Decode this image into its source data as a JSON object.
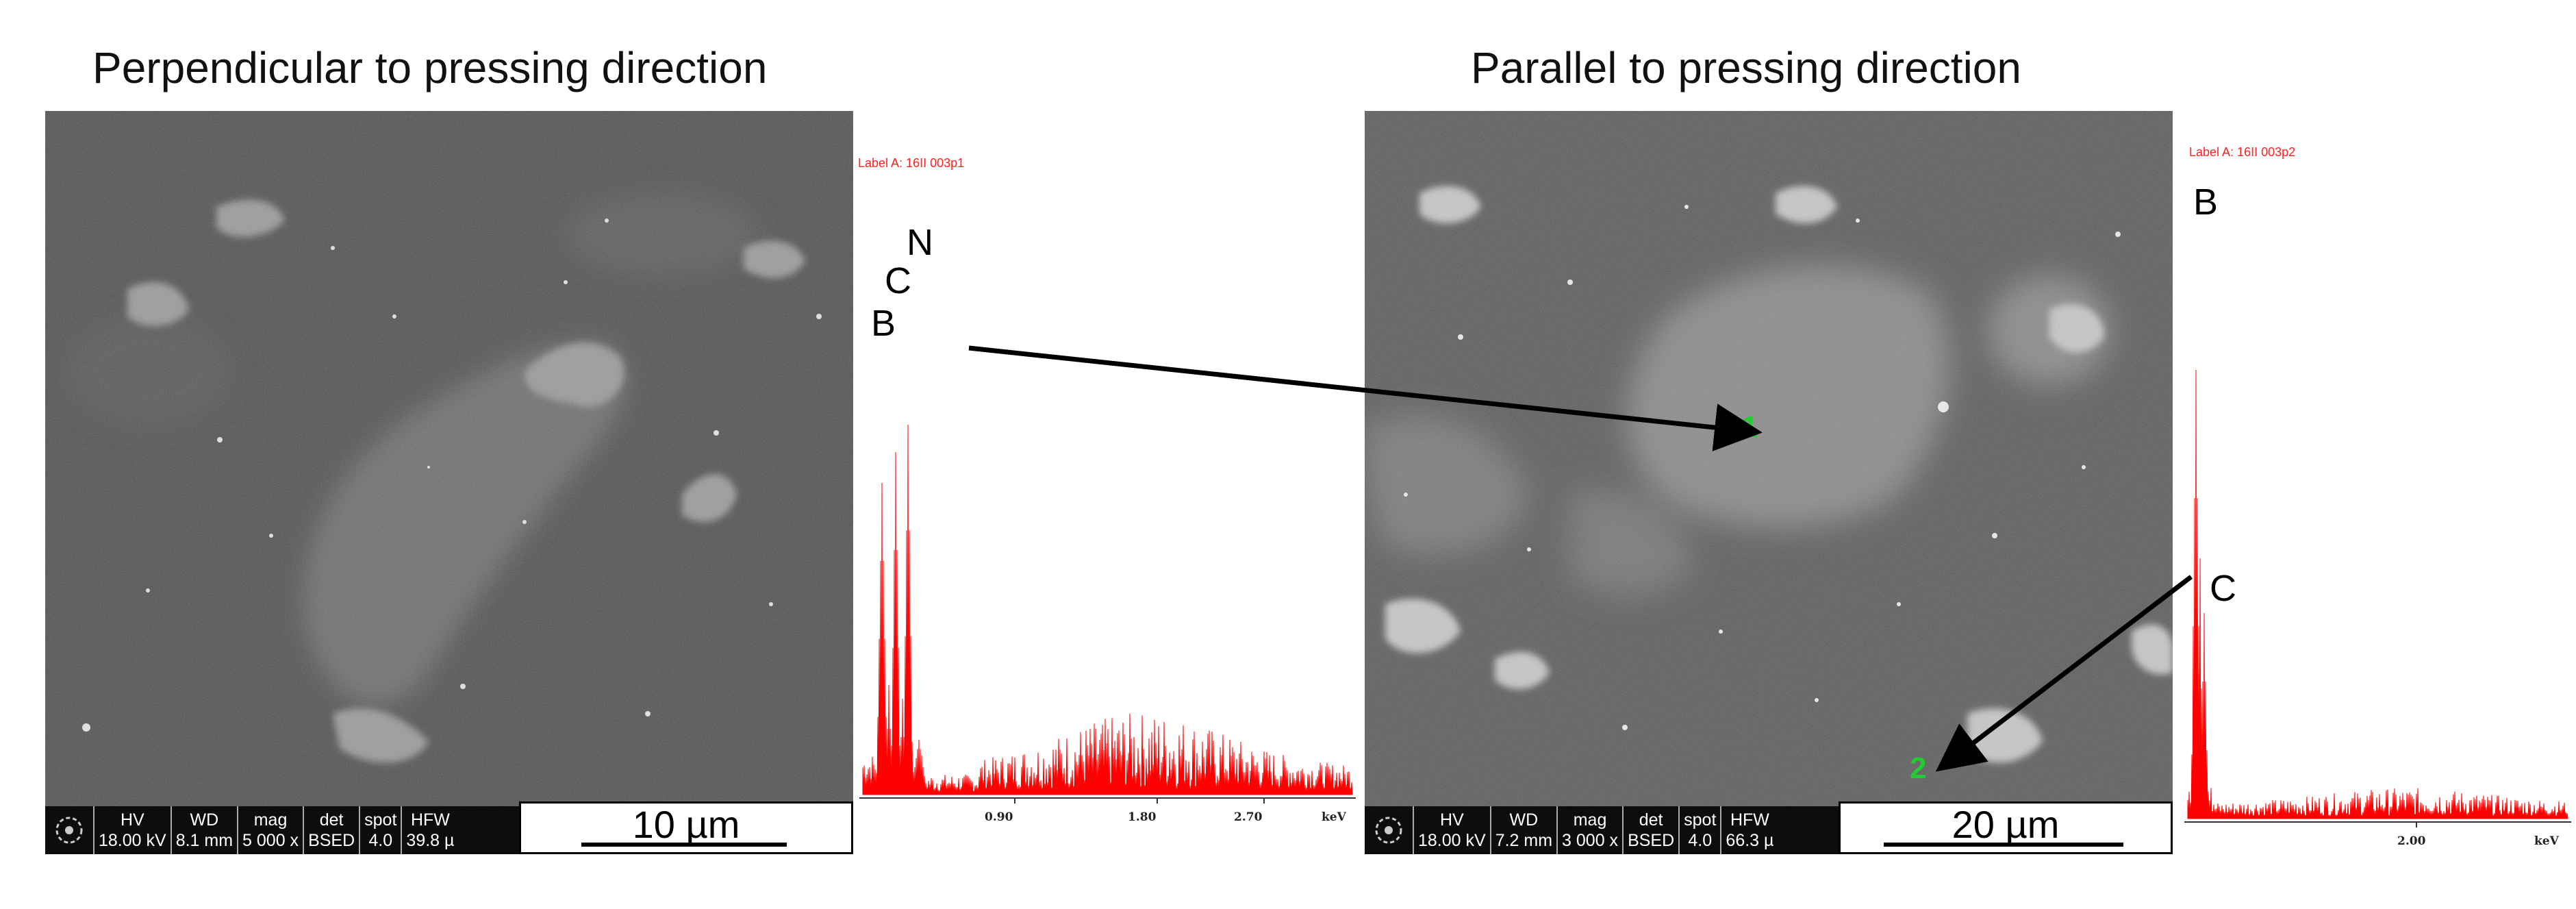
{
  "left_panel": {
    "title": "Perpendicular to pressing direction",
    "databar": {
      "headers": [
        "HV",
        "WD",
        "mag",
        "det",
        "spot",
        "HFW"
      ],
      "values": [
        "18.00 kV",
        "8.1 mm",
        "5 000 x",
        "BSED",
        "4.0",
        "39.8 µ"
      ]
    },
    "scale_label": "10 µm",
    "spectrum": {
      "label": "Label A: 16II 003p1",
      "peaks": [
        "B",
        "C",
        "N"
      ],
      "ticks": [
        "0.90",
        "1.80",
        "2.70"
      ],
      "unit": "keV"
    }
  },
  "right_panel": {
    "title": "Parallel to pressing direction",
    "databar": {
      "headers": [
        "HV",
        "WD",
        "mag",
        "det",
        "spot",
        "HFW"
      ],
      "values": [
        "18.00 kV",
        "7.2 mm",
        "3 000 x",
        "BSED",
        "4.0",
        "66.3 µ"
      ]
    },
    "scale_label": "20 µm",
    "points": [
      "1",
      "2"
    ],
    "spectrum": {
      "label": "Label A: 16II 003p2",
      "peaks": [
        "B",
        "C"
      ],
      "ticks": [
        "2.00"
      ],
      "unit": "keV"
    }
  },
  "colors": {
    "spectrum": "#ff0000",
    "point_marker": "#22cc33",
    "arrow": "#000000"
  }
}
